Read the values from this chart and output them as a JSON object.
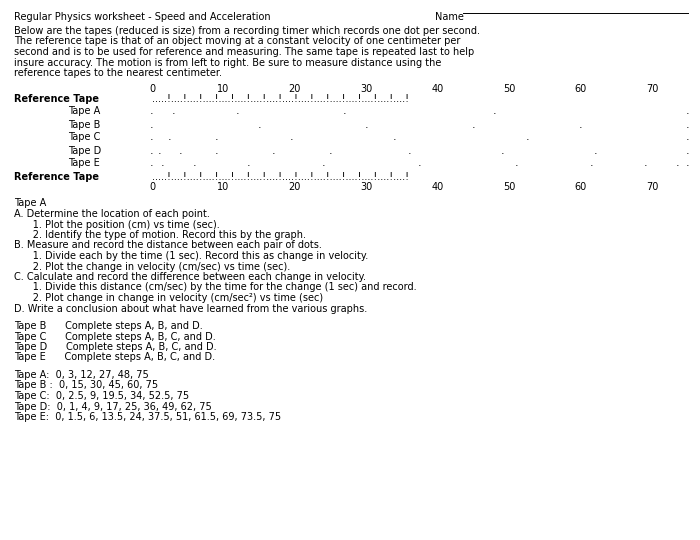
{
  "title": "Regular Physics worksheet - Speed and Acceleration",
  "name_label": "Name",
  "intro_text": [
    "Below are the tapes (reduced is size) from a recording timer which records one dot per second.",
    "The reference tape is that of an object moving at a constant velocity of one centimeter per",
    "second and is to be used for reference and measuring. The same tape is repeated last to help",
    "insure accuracy. The motion is from left to right. Be sure to measure distance using the",
    "reference tapes to the nearest centimeter."
  ],
  "scale_ticks": [
    0,
    10,
    20,
    30,
    40,
    50,
    60,
    70
  ],
  "tape_A_positions": [
    0,
    3,
    12,
    27,
    48,
    75
  ],
  "tape_B_positions": [
    0,
    15,
    30,
    45,
    60,
    75
  ],
  "tape_C_positions": [
    0,
    2.5,
    9,
    19.5,
    34,
    52.5,
    75
  ],
  "tape_D_positions": [
    0,
    1,
    4,
    9,
    17,
    25,
    36,
    49,
    62,
    75
  ],
  "tape_E_positions": [
    0,
    1.5,
    6,
    13.5,
    24,
    37.5,
    51,
    61.5,
    69,
    73.5,
    75
  ],
  "ref_tape_pattern": ".....!....!....!....!....!....!....!....!....!....!....!....!....!....!....!....!",
  "instructions_tapeA": [
    [
      "Tape A",
      false
    ],
    [
      "A. Determine the location of each point.",
      false
    ],
    [
      "      1. Plot the position (cm) vs time (sec).",
      false
    ],
    [
      "      2. Identify the type of motion. Record this by the graph.",
      false
    ],
    [
      "B. Measure and record the distance between each pair of dots.",
      false
    ],
    [
      "      1. Divide each by the time (1 sec). Record this as change in velocity.",
      false
    ],
    [
      "      2. Plot the change in velocity (cm/sec) vs time (sec).",
      false
    ],
    [
      "C. Calculate and record the difference between each change in velocity.",
      false
    ],
    [
      "      1. Divide this distance (cm/sec) by the time for the change (1 sec) and record.",
      false
    ],
    [
      "      2. Plot change in change in velocity (cm/sec²) vs time (sec)",
      false
    ],
    [
      "D. Write a conclusion about what have learned from the various graphs.",
      false
    ]
  ],
  "tape_tasks": [
    "Tape B      Complete steps A, B, and D.",
    "Tape C      Complete steps A, B, C, and D.",
    "Tape D      Complete steps A, B, C, and D.",
    "Tape E      Complete steps A, B, C, and D."
  ],
  "data_lines": [
    "Tape A:  0, 3, 12, 27, 48, 75",
    "Tape B :  0, 15, 30, 45, 60, 75",
    "Tape C:  0, 2.5, 9, 19.5, 34, 52.5, 75",
    "Tape D:  0, 1, 4, 9, 17, 25, 36, 49, 62, 75",
    "Tape E:  0, 1.5, 6, 13.5, 24, 37.5, 51, 61.5, 69, 73.5, 75"
  ],
  "bg_color": "#ffffff",
  "text_color": "#000000"
}
